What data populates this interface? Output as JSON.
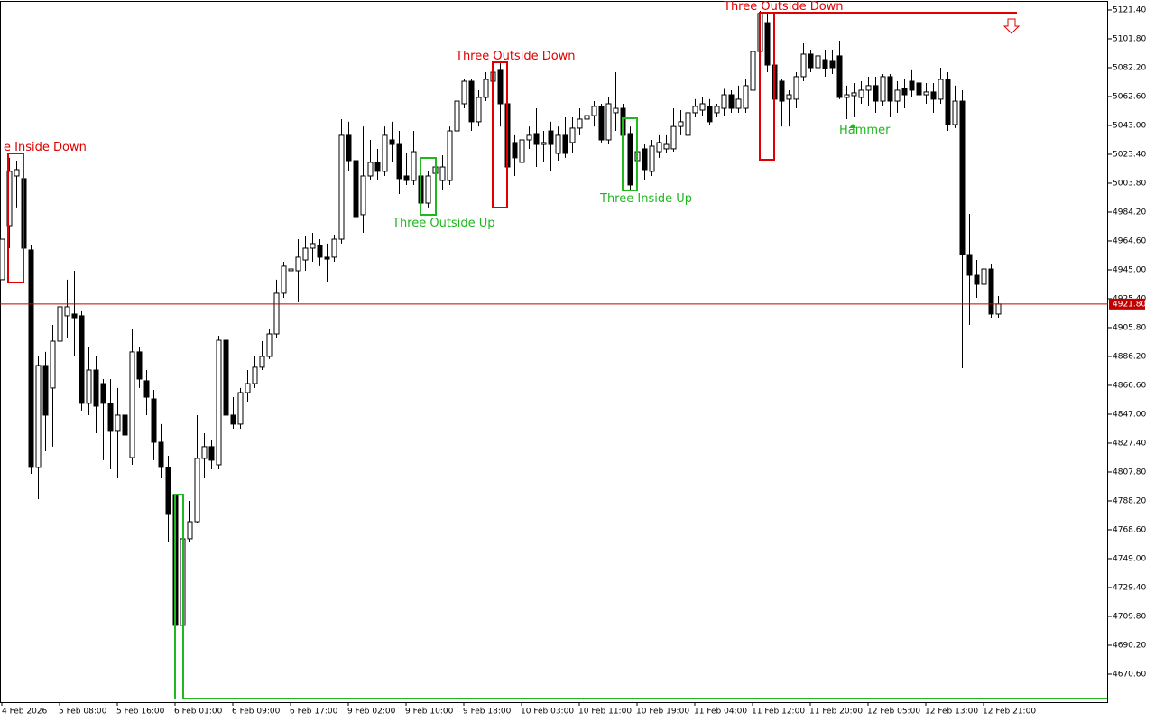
{
  "chart_data": {
    "type": "candlestick",
    "categories": [
      "4 Feb 2026",
      null,
      null,
      null,
      null,
      null,
      null,
      null,
      "5 Feb 08:00",
      null,
      null,
      null,
      null,
      null,
      null,
      null,
      "5 Feb 16:00",
      null,
      null,
      null,
      null,
      null,
      null,
      null,
      "6 Feb 01:00",
      null,
      null,
      null,
      null,
      null,
      null,
      null,
      "6 Feb 09:00",
      null,
      null,
      null,
      null,
      null,
      null,
      null,
      "6 Feb 17:00",
      null,
      null,
      null,
      null,
      null,
      null,
      null,
      "9 Feb 02:00",
      null,
      null,
      null,
      null,
      null,
      null,
      null,
      "9 Feb 10:00",
      null,
      null,
      null,
      null,
      null,
      null,
      null,
      "9 Feb 18:00",
      null,
      null,
      null,
      null,
      null,
      null,
      null,
      "10 Feb 03:00",
      null,
      null,
      null,
      null,
      null,
      null,
      null,
      "10 Feb 11:00",
      null,
      null,
      null,
      null,
      null,
      null,
      null,
      "10 Feb 19:00",
      null,
      null,
      null,
      null,
      null,
      null,
      null,
      "11 Feb 04:00",
      null,
      null,
      null,
      null,
      null,
      null,
      null,
      "11 Feb 12:00",
      null,
      null,
      null,
      null,
      null,
      null,
      null,
      "11 Feb 20:00",
      null,
      null,
      null,
      null,
      null,
      null,
      null,
      "12 Feb 05:00",
      null,
      null,
      null,
      null,
      null,
      null,
      null,
      "12 Feb 13:00",
      null,
      null,
      null,
      null,
      null,
      null,
      null,
      "12 Feb 21:00",
      null,
      null
    ],
    "open": [
      4938.3,
      4975.0,
      5008.7,
      5006.9,
      4958.5,
      4810.9,
      4880.1,
      4864.8,
      4896.6,
      4913.8,
      4915.0,
      4913.8,
      4854.4,
      4877.0,
      4867.8,
      4854.4,
      4835.4,
      4846.4,
      4817.6,
      4889.3,
      4869.7,
      4857.4,
      4828.0,
      4810.9,
      4792.5,
      4703.7,
      4762.5,
      4774.1,
      4817.0,
      4825.0,
      4812.7,
      4897.2,
      4846.4,
      4840.3,
      4861.7,
      4867.8,
      4878.9,
      4886.2,
      4901.5,
      4929.1,
      4944.4,
      4944.4,
      4951.7,
      4959.7,
      4961.6,
      4953.6,
      4953.6,
      4965.8,
      5036.3,
      5019.1,
      4982.4,
      5008.7,
      5017.9,
      5011.8,
      5033.2,
      5030.1,
      5008.7,
      5005.6,
      5008.7,
      4990.3,
      5010.5,
      5005.6,
      5005.6,
      5039.3,
      5057.7,
      5073.0,
      5045.5,
      5062.0,
      5073.0,
      5080.4,
      5057.7,
      5031.4,
      5017.9,
      5033.2,
      5037.5,
      5030.1,
      5039.3,
      5024.0,
      5036.3,
      5031.4,
      5041.2,
      5047.3,
      5049.7,
      5055.9,
      5033.2,
      5051.6,
      5054.6,
      5037.5,
      5019.1,
      5027.1,
      5011.8,
      5025.2,
      5027.1,
      5027.1,
      5042.3,
      5036.3,
      5051.6,
      5053.4,
      5055.9,
      5051.6,
      5054.6,
      5063.8,
      5054.6,
      5054.6,
      5066.9,
      5093.2,
      5112.8,
      5084.0,
      5073.0,
      5060.8,
      5060.8,
      5076.1,
      5091.4,
      5082.2,
      5087.7,
      5086.5,
      5090.2,
      5062.0,
      5063.2,
      5062.0,
      5066.9,
      5070.0,
      5059.5,
      5076.1,
      5059.5,
      5067.8,
      5073.0,
      5071.8,
      5063.8,
      5065.7,
      5060.8,
      5074.2,
      5043.6,
      5059.5,
      4955.4,
      4941.3,
      4935.2,
      4945.6,
      4915.0
    ],
    "high": [
      4965.8,
      5021.0,
      5019.1,
      5011.8,
      4961.6,
      4886.2,
      4889.3,
      4907.6,
      4933.4,
      4938.3,
      4944.4,
      4916.9,
      4892.3,
      4886.2,
      4870.9,
      4870.9,
      4864.8,
      4858.6,
      4904.6,
      4892.3,
      4877.0,
      4863.5,
      4840.3,
      4818.8,
      4792.5,
      4766.8,
      4788.2,
      4846.4,
      4834.1,
      4829.3,
      4900.3,
      4901.5,
      4858.6,
      4864.8,
      4877.0,
      4886.2,
      4896.6,
      4904.6,
      4938.3,
      4950.5,
      4962.8,
      4965.8,
      4967.7,
      4970.1,
      4965.8,
      4962.8,
      4968.9,
      5047.3,
      5045.5,
      5030.1,
      5042.3,
      5033.2,
      5027.1,
      5042.3,
      5045.5,
      5039.3,
      5024.0,
      5039.3,
      5011.8,
      5011.8,
      5021.0,
      5022.8,
      5042.3,
      5060.8,
      5074.2,
      5074.2,
      5066.9,
      5079.1,
      5085.3,
      5085.3,
      5060.8,
      5036.3,
      5054.6,
      5042.3,
      5054.6,
      5039.3,
      5045.5,
      5042.3,
      5048.5,
      5048.5,
      5054.6,
      5057.7,
      5059.5,
      5057.7,
      5062.0,
      5079.1,
      5057.7,
      5042.3,
      5036.3,
      5030.1,
      5033.2,
      5036.3,
      5036.3,
      5054.6,
      5053.4,
      5057.7,
      5060.8,
      5062.0,
      5060.8,
      5057.7,
      5067.8,
      5066.9,
      5070.0,
      5074.2,
      5097.5,
      5120.8,
      5119.0,
      5086.5,
      5074.2,
      5066.9,
      5079.1,
      5098.7,
      5094.4,
      5094.4,
      5094.4,
      5094.4,
      5100.6,
      5070.0,
      5071.8,
      5073.0,
      5076.1,
      5076.1,
      5077.9,
      5077.9,
      5073.0,
      5074.2,
      5080.4,
      5074.2,
      5071.8,
      5071.8,
      5082.2,
      5079.1,
      5070.0,
      5066.9,
      4983.0,
      4951.7,
      4957.9,
      4949.3,
      4927.2
    ],
    "low": [
      4938.3,
      4959.7,
      4987.3,
      4950.5,
      4806.6,
      4789.4,
      4821.9,
      4825.0,
      4877.0,
      4898.5,
      4886.2,
      4849.5,
      4846.4,
      4834.1,
      4815.8,
      4809.6,
      4803.5,
      4815.8,
      4812.7,
      4864.8,
      4846.4,
      4815.8,
      4803.5,
      4760.6,
      4653.5,
      4693.3,
      4760.6,
      4772.9,
      4803.5,
      4809.6,
      4809.6,
      4840.3,
      4837.2,
      4837.2,
      4855.6,
      4864.8,
      4877.0,
      4884.4,
      4898.5,
      4926.0,
      4926.0,
      4923.0,
      4944.4,
      4950.5,
      4947.5,
      4937.0,
      4950.5,
      4962.8,
      5011.8,
      4975.0,
      4970.1,
      5005.6,
      5005.6,
      5008.7,
      5017.9,
      4996.4,
      5002.6,
      5002.6,
      4987.3,
      4987.3,
      5005.6,
      4999.5,
      5002.6,
      5036.3,
      5054.6,
      5039.3,
      5042.3,
      5059.5,
      5057.7,
      5042.3,
      4990.3,
      5008.7,
      5014.8,
      5027.1,
      5014.8,
      5017.9,
      5011.8,
      5019.1,
      5021.0,
      5024.0,
      5036.3,
      5039.3,
      5042.3,
      5031.4,
      5030.1,
      5039.3,
      5027.1,
      4999.5,
      5011.8,
      5005.6,
      5008.7,
      5021.0,
      5024.0,
      5025.2,
      5036.3,
      5031.4,
      5048.5,
      5049.7,
      5043.6,
      5048.5,
      5049.7,
      5051.6,
      5051.6,
      5051.6,
      5063.8,
      5091.4,
      5079.1,
      5036.3,
      5042.3,
      5042.3,
      5054.6,
      5073.0,
      5079.1,
      5079.1,
      5076.1,
      5077.9,
      5060.8,
      5047.3,
      5048.5,
      5057.7,
      5055.9,
      5051.6,
      5055.9,
      5048.5,
      5051.6,
      5054.6,
      5062.0,
      5057.7,
      5057.7,
      5051.6,
      5057.7,
      5039.3,
      5041.2,
      4878.2,
      4907.6,
      4926.0,
      4930.9,
      4912.5,
      4912.5
    ],
    "close": [
      4965.8,
      5011.8,
      5013.0,
      4959.7,
      4810.9,
      4880.1,
      4846.4,
      4896.6,
      4919.9,
      4919.9,
      4912.5,
      4854.4,
      4877.0,
      4852.5,
      4854.4,
      4835.4,
      4846.4,
      4832.9,
      4889.3,
      4870.9,
      4858.6,
      4828.0,
      4810.9,
      4779.0,
      4703.7,
      4762.5,
      4774.1,
      4817.0,
      4825.0,
      4815.8,
      4897.2,
      4846.4,
      4840.3,
      4861.7,
      4867.8,
      4878.9,
      4886.2,
      4901.5,
      4929.1,
      4947.5,
      4945.6,
      4953.6,
      4959.7,
      4962.8,
      4953.6,
      4952.3,
      4965.8,
      5036.3,
      5019.1,
      4981.1,
      5008.7,
      5017.9,
      5011.8,
      5036.3,
      5030.1,
      5006.9,
      5005.6,
      5025.2,
      4990.3,
      5008.7,
      5014.8,
      5014.8,
      5039.3,
      5059.5,
      5073.0,
      5045.5,
      5062.0,
      5074.2,
      5079.1,
      5057.7,
      5014.8,
      5021.0,
      5033.2,
      5036.3,
      5030.1,
      5031.4,
      5030.1,
      5036.3,
      5024.0,
      5041.2,
      5047.3,
      5049.7,
      5055.9,
      5033.2,
      5057.7,
      5054.6,
      5036.3,
      5002.6,
      5025.2,
      5013.0,
      5028.9,
      5031.4,
      5030.1,
      5042.3,
      5045.5,
      5051.6,
      5055.9,
      5057.7,
      5045.5,
      5055.9,
      5063.8,
      5054.6,
      5060.8,
      5070.0,
      5093.2,
      5119.0,
      5084.0,
      5060.8,
      5059.5,
      5063.8,
      5076.1,
      5091.4,
      5082.2,
      5090.2,
      5081.6,
      5082.2,
      5062.0,
      5063.8,
      5065.1,
      5066.9,
      5070.0,
      5059.5,
      5076.1,
      5059.5,
      5066.9,
      5063.8,
      5066.9,
      5063.8,
      5065.7,
      5060.8,
      5074.2,
      5043.6,
      5059.5,
      4955.4,
      4941.3,
      4935.2,
      4945.6,
      4915.0,
      4921.8
    ],
    "ylim": [
      4651.6,
      5126.9
    ],
    "yticks": [
      {
        "value": 5121.4,
        "label": "5121.40"
      },
      {
        "value": 5101.8,
        "label": "5101.80"
      },
      {
        "value": 5082.2,
        "label": "5082.20"
      },
      {
        "value": 5062.6,
        "label": "5062.60"
      },
      {
        "value": 5043.0,
        "label": "5043.00"
      },
      {
        "value": 5023.4,
        "label": "5023.40"
      },
      {
        "value": 5003.8,
        "label": "5003.80"
      },
      {
        "value": 4984.2,
        "label": "4984.20"
      },
      {
        "value": 4964.6,
        "label": "4964.60"
      },
      {
        "value": 4945.0,
        "label": "4945.00"
      },
      {
        "value": 4925.4,
        "label": "4925.40"
      },
      {
        "value": 4905.8,
        "label": "4905.80"
      },
      {
        "value": 4886.2,
        "label": "4886.20"
      },
      {
        "value": 4866.6,
        "label": "4866.60"
      },
      {
        "value": 4847.0,
        "label": "4847.00"
      },
      {
        "value": 4827.4,
        "label": "4827.40"
      },
      {
        "value": 4807.8,
        "label": "4807.80"
      },
      {
        "value": 4788.2,
        "label": "4788.20"
      },
      {
        "value": 4768.6,
        "label": "4768.60"
      },
      {
        "value": 4749.0,
        "label": "4749.00"
      },
      {
        "value": 4729.4,
        "label": "4729.40"
      },
      {
        "value": 4709.8,
        "label": "4709.80"
      },
      {
        "value": 4690.2,
        "label": "4690.20"
      },
      {
        "value": 4670.6,
        "label": "4670.60"
      }
    ],
    "last_price": {
      "value": 4921.8,
      "label": "4921.80"
    },
    "annotations": [
      "e Inside Down",
      "Three Outside Down",
      "Three Outside Up",
      "Three Inside Up",
      "Three Outside Down",
      "Hammer"
    ]
  }
}
